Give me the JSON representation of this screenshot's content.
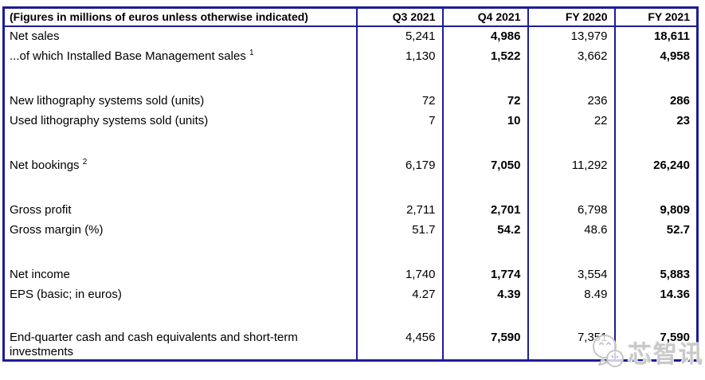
{
  "chart_data": {
    "type": "table",
    "title": "(Figures in millions of euros unless otherwise indicated)",
    "columns": [
      "Q3 2021",
      "Q4 2021",
      "FY 2020",
      "FY 2021"
    ],
    "bold_columns": [
      "Q4 2021",
      "FY 2021"
    ],
    "rows": [
      {
        "type": "data",
        "label": "Net sales",
        "values": [
          "5,241",
          "4,986",
          "13,979",
          "18,611"
        ]
      },
      {
        "type": "data",
        "label": "...of which Installed Base Management sales",
        "sup": "1",
        "values": [
          "1,130",
          "1,522",
          "3,662",
          "4,958"
        ]
      },
      {
        "type": "spacer"
      },
      {
        "type": "data",
        "label": "New lithography systems sold (units)",
        "values": [
          "72",
          "72",
          "236",
          "286"
        ]
      },
      {
        "type": "data",
        "label": "Used lithography systems sold (units)",
        "values": [
          "7",
          "10",
          "22",
          "23"
        ]
      },
      {
        "type": "spacer"
      },
      {
        "type": "data",
        "label": "Net bookings",
        "sup": "2",
        "values": [
          "6,179",
          "7,050",
          "11,292",
          "26,240"
        ]
      },
      {
        "type": "spacer"
      },
      {
        "type": "data",
        "label": "Gross profit",
        "values": [
          "2,711",
          "2,701",
          "6,798",
          "9,809"
        ]
      },
      {
        "type": "data",
        "label": "Gross margin (%)",
        "values": [
          "51.7",
          "54.2",
          "48.6",
          "52.7"
        ]
      },
      {
        "type": "spacer"
      },
      {
        "type": "data",
        "label": "Net income",
        "values": [
          "1,740",
          "1,774",
          "3,554",
          "5,883"
        ]
      },
      {
        "type": "data",
        "label": "EPS (basic; in euros)",
        "values": [
          "4.27",
          "4.39",
          "8.49",
          "14.36"
        ]
      },
      {
        "type": "spacer"
      },
      {
        "type": "data",
        "label": "End-quarter cash and cash equivalents and short-term investments",
        "values": [
          "4,456",
          "7,590",
          "7,351",
          "7,590"
        ],
        "tall": true
      }
    ]
  },
  "watermark": {
    "text": "芯智讯",
    "icon": "chat-bubbles-logo-icon"
  },
  "colors": {
    "border": "#1d1d96",
    "text": "#000000",
    "watermark": "#c9c9c9"
  }
}
